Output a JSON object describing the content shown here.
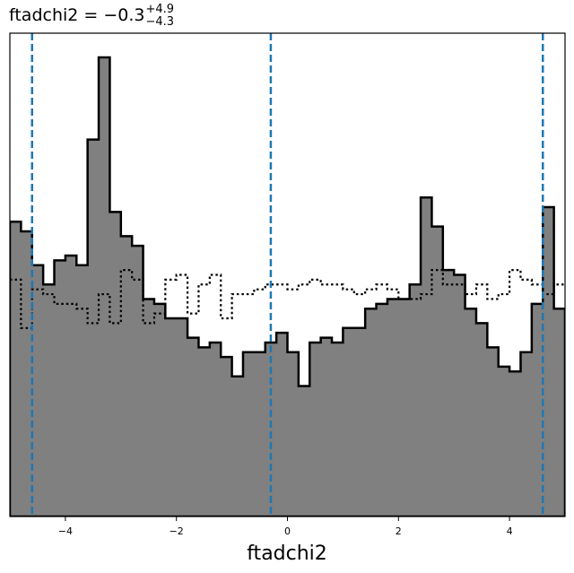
{
  "chart_data": {
    "type": "histogram",
    "title": {
      "name": "ftadchi2",
      "eq": " = ",
      "value": "−0.3",
      "upper": "+4.9",
      "lower": "−4.3"
    },
    "xlabel": "ftadchi2",
    "ylabel": "",
    "xlim": [
      -5,
      5
    ],
    "ylim": [
      0,
      1.0
    ],
    "grid": false,
    "xticks": [
      {
        "value": -4,
        "label": "−4"
      },
      {
        "value": -2,
        "label": "−2"
      },
      {
        "value": 0,
        "label": "0"
      },
      {
        "value": 2,
        "label": "2"
      },
      {
        "value": 4,
        "label": "4"
      }
    ],
    "bin_edges_start": -5,
    "bin_width": 0.2,
    "series": [
      {
        "style": "filled-step",
        "fill": "#808080",
        "stroke": "#000000",
        "values": [
          0.61,
          0.59,
          0.52,
          0.48,
          0.53,
          0.54,
          0.52,
          0.78,
          0.95,
          0.63,
          0.58,
          0.56,
          0.45,
          0.44,
          0.41,
          0.41,
          0.37,
          0.35,
          0.36,
          0.33,
          0.29,
          0.34,
          0.34,
          0.36,
          0.38,
          0.34,
          0.27,
          0.36,
          0.37,
          0.36,
          0.39,
          0.39,
          0.43,
          0.44,
          0.45,
          0.45,
          0.48,
          0.66,
          0.6,
          0.51,
          0.5,
          0.43,
          0.4,
          0.35,
          0.31,
          0.3,
          0.34,
          0.44,
          0.64,
          0.43
        ]
      },
      {
        "style": "dotted-step",
        "stroke": "#000000",
        "values": [
          0.49,
          0.39,
          0.47,
          0.46,
          0.44,
          0.44,
          0.43,
          0.4,
          0.46,
          0.4,
          0.51,
          0.49,
          0.4,
          0.42,
          0.49,
          0.5,
          0.42,
          0.48,
          0.5,
          0.41,
          0.46,
          0.46,
          0.47,
          0.48,
          0.48,
          0.47,
          0.48,
          0.49,
          0.48,
          0.48,
          0.47,
          0.46,
          0.47,
          0.48,
          0.47,
          0.45,
          0.45,
          0.46,
          0.51,
          0.48,
          0.48,
          0.46,
          0.48,
          0.45,
          0.46,
          0.51,
          0.49,
          0.48,
          0.46,
          0.48
        ]
      }
    ],
    "vlines": [
      {
        "x": -4.6,
        "color": "#1f77b4",
        "style": "dashed"
      },
      {
        "x": -0.3,
        "color": "#1f77b4",
        "style": "dashed"
      },
      {
        "x": 4.6,
        "color": "#1f77b4",
        "style": "dashed"
      }
    ]
  }
}
